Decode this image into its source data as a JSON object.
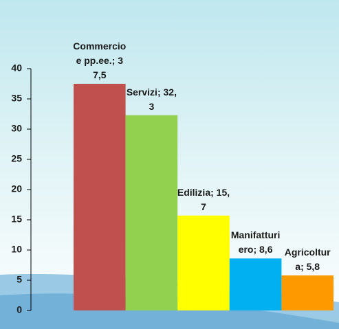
{
  "chart_data": {
    "type": "bar",
    "values": [
      37.5,
      32.3,
      15.7,
      8.6,
      5.8
    ],
    "value_labels": [
      "Commercio e pp.ee.; 37,5",
      "Servizi; 32,3",
      "Edilizia; 15,7",
      "Manifatturiero; 8,6",
      "Agricoltura; 5,8"
    ],
    "colors": [
      "#c0504d",
      "#92d050",
      "#ffff00",
      "#00b0f0",
      "#ff9900"
    ],
    "ylim": [
      0,
      40
    ],
    "yticks": [
      0,
      5,
      10,
      15,
      20,
      25,
      30,
      35,
      40
    ]
  }
}
